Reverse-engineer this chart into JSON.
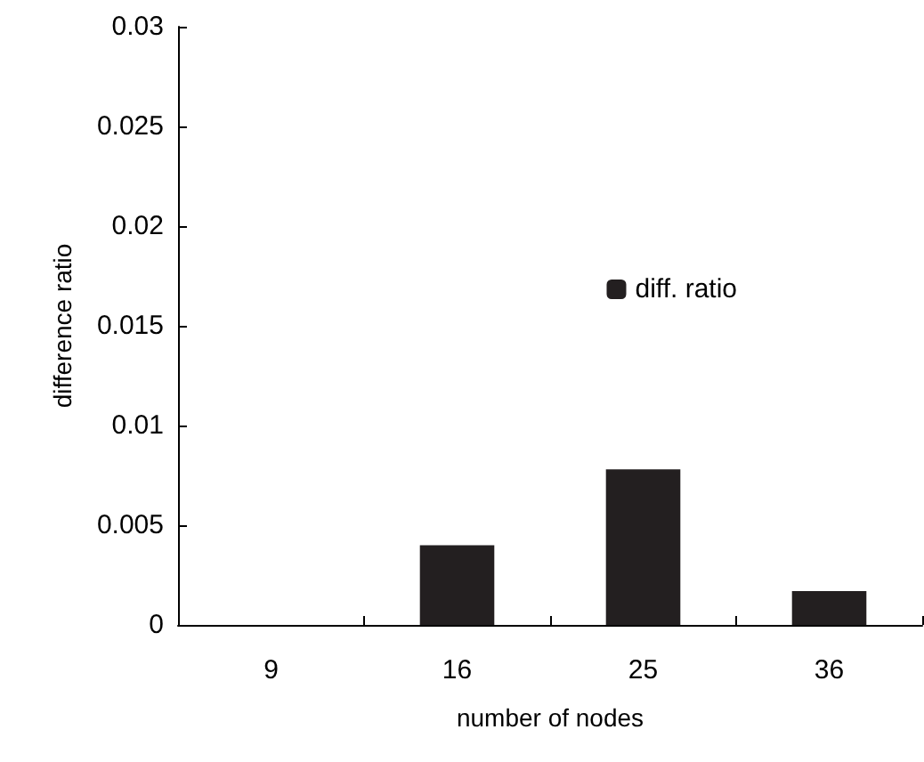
{
  "chart_data": {
    "type": "bar",
    "xlabel": "number of nodes",
    "ylabel": "difference ratio",
    "categories": [
      "9",
      "16",
      "25",
      "36"
    ],
    "series": [
      {
        "name": "diff. ratio",
        "color": "#231f20",
        "values": [
          0,
          0.004,
          0.0078,
          0.0017
        ]
      }
    ],
    "ylim": [
      0,
      0.03
    ],
    "yticks": [
      0,
      0.005,
      0.01,
      0.015,
      0.02,
      0.025,
      0.03
    ],
    "grid": false,
    "legend": "right"
  }
}
